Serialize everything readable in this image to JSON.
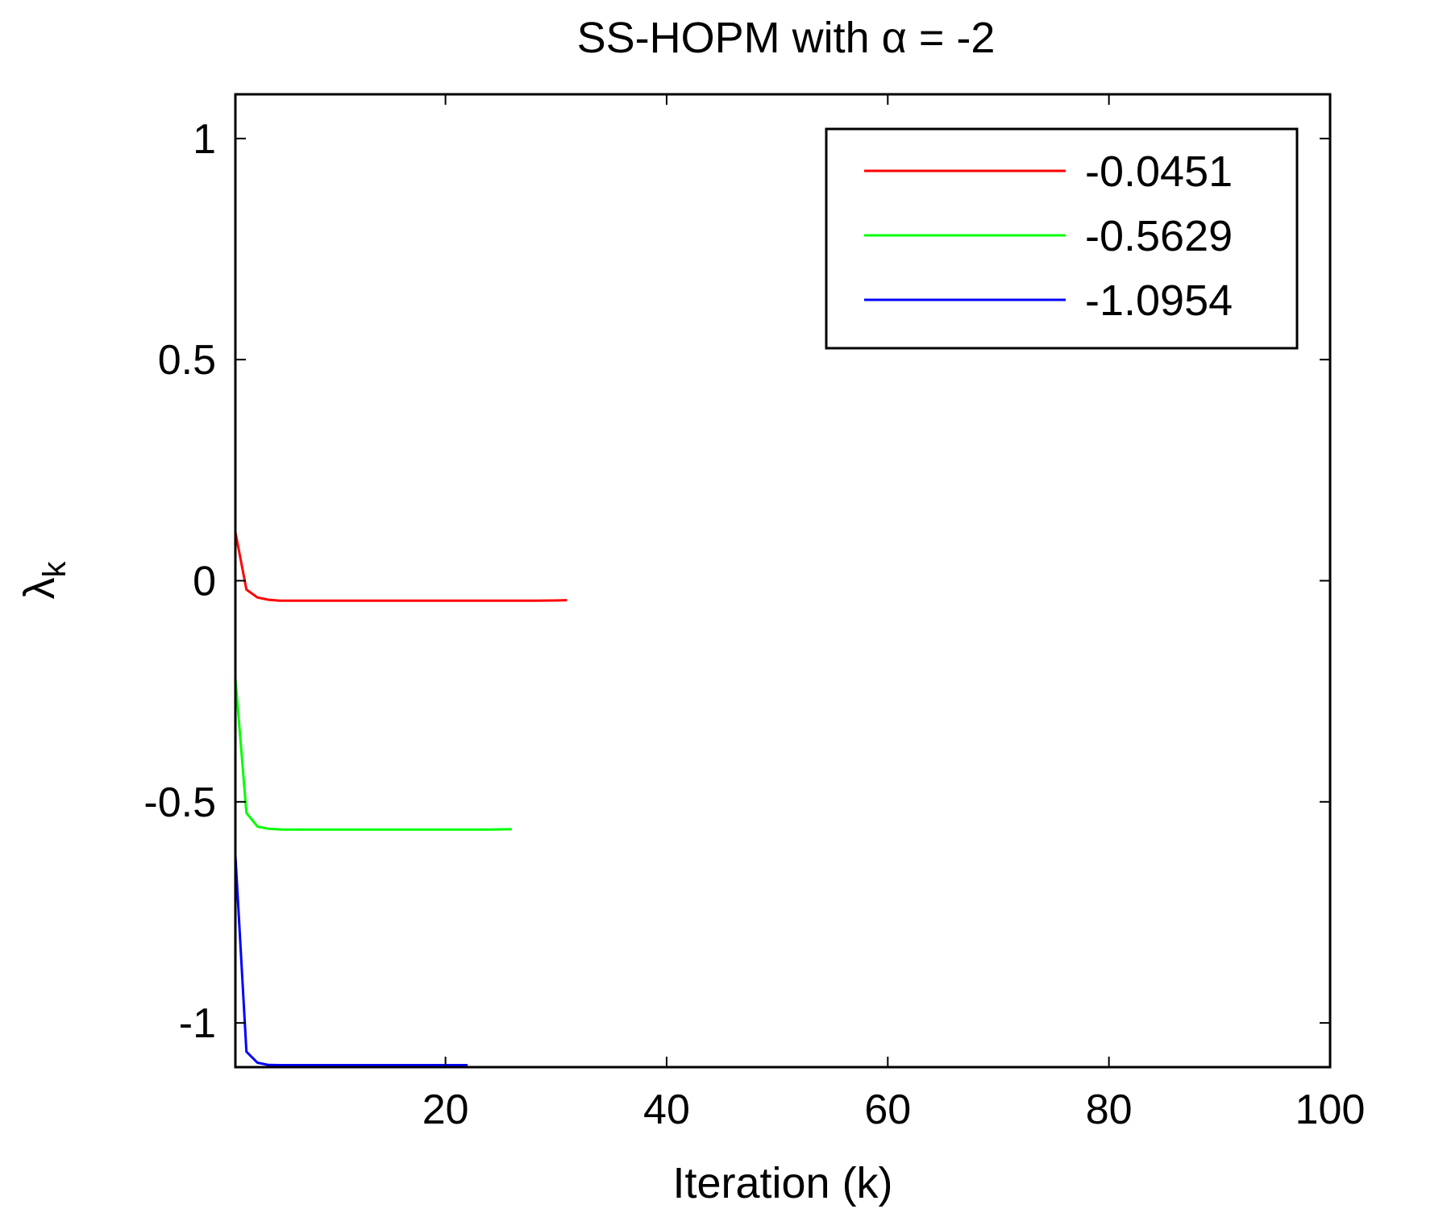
{
  "chart_data": {
    "type": "line",
    "title_prefix": "SS-HOPM with ",
    "title_symbol": "α",
    "title_suffix": " = -2",
    "xlabel": "Iteration (k)",
    "ylabel_symbol": "λ",
    "ylabel_subscript": "k",
    "xlim": [
      1,
      100
    ],
    "ylim": [
      -1.1,
      1.1
    ],
    "xticks": [
      20,
      40,
      60,
      80,
      100
    ],
    "yticks": [
      1,
      0.5,
      0,
      -0.5,
      -1
    ],
    "xtick_labels": [
      "20",
      "40",
      "60",
      "80",
      "100"
    ],
    "ytick_labels": [
      "1",
      "0.5",
      "0",
      "-0.5",
      "-1"
    ],
    "grid": false,
    "legend_position": "top-right",
    "series": [
      {
        "name": "-0.0451",
        "color": "#ff0000",
        "x": [
          1,
          2,
          3,
          4,
          5,
          6,
          8,
          10,
          15,
          20,
          25,
          28,
          30,
          31
        ],
        "y": [
          0.11,
          -0.02,
          -0.038,
          -0.043,
          -0.045,
          -0.0451,
          -0.0451,
          -0.0451,
          -0.0451,
          -0.0451,
          -0.0451,
          -0.0451,
          -0.0446,
          -0.044
        ]
      },
      {
        "name": "-0.5629",
        "color": "#00ff00",
        "x": [
          1,
          2,
          3,
          4,
          5,
          6,
          8,
          10,
          15,
          18,
          20,
          24,
          26
        ],
        "y": [
          -0.22,
          -0.525,
          -0.556,
          -0.561,
          -0.5625,
          -0.5629,
          -0.5629,
          -0.5629,
          -0.5629,
          -0.5629,
          -0.5626,
          -0.5626,
          -0.5618
        ]
      },
      {
        "name": "-1.0954",
        "color": "#0000ff",
        "x": [
          1,
          2,
          3,
          4,
          5,
          8,
          10,
          15,
          20,
          22
        ],
        "y": [
          -0.62,
          -1.065,
          -1.09,
          -1.095,
          -1.0954,
          -1.0954,
          -1.0954,
          -1.0954,
          -1.0954,
          -1.0954
        ]
      }
    ]
  }
}
